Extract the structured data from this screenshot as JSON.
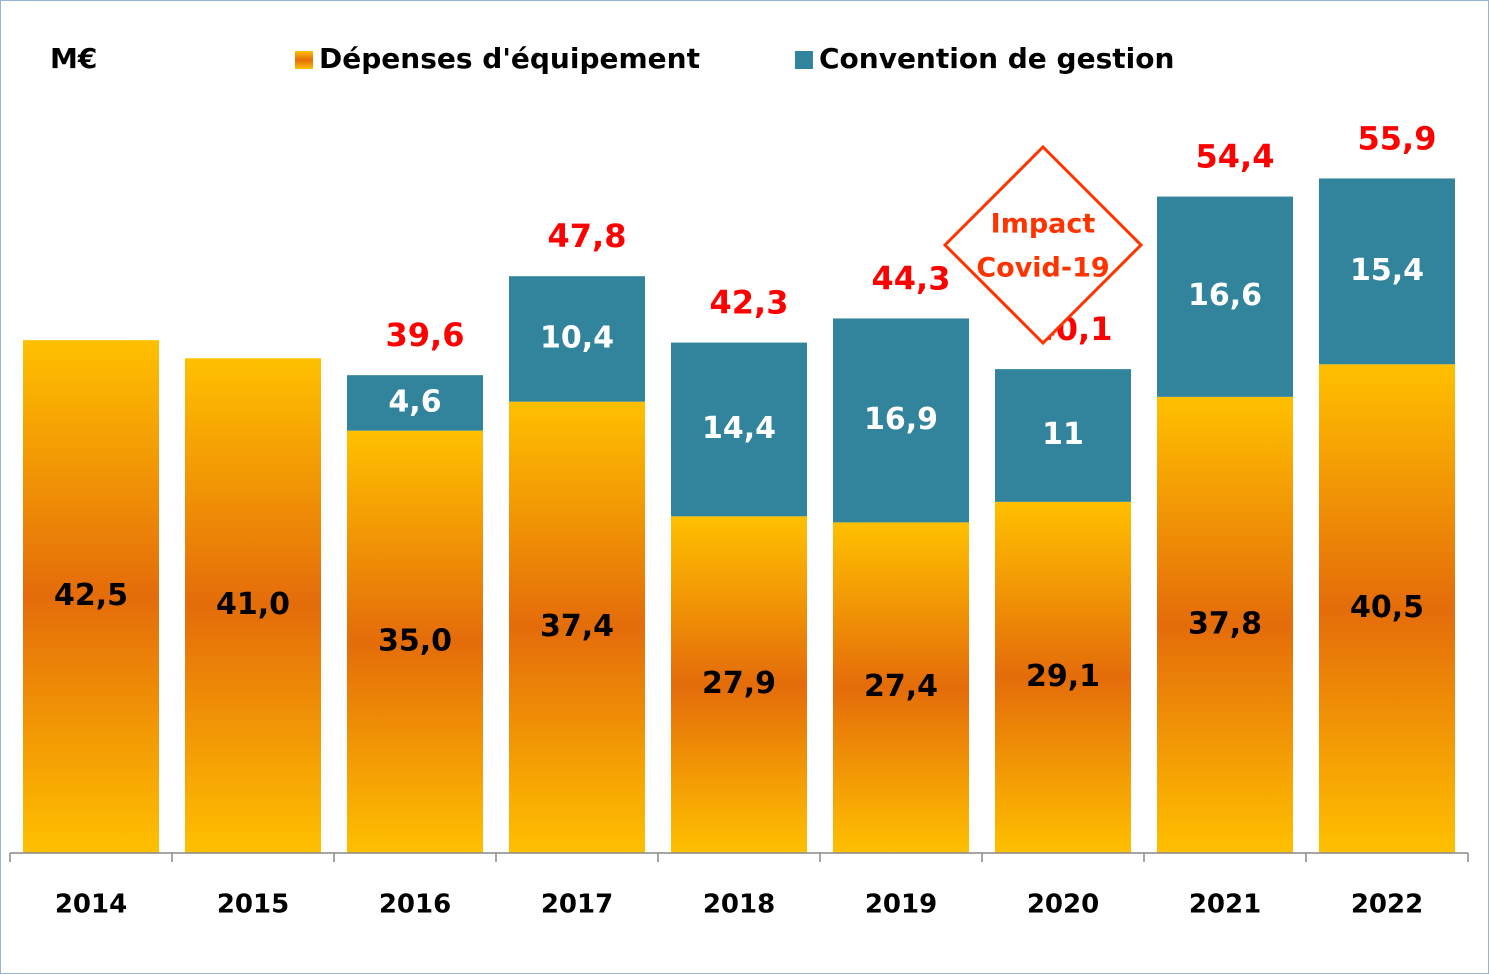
{
  "chart_data": {
    "type": "stacked_bar",
    "unit_label": "M€",
    "categories": [
      "2014",
      "2015",
      "2016",
      "2017",
      "2018",
      "2019",
      "2020",
      "2021",
      "2022"
    ],
    "series": [
      {
        "name": "Dépenses d'équipement",
        "color": "#E46C0A",
        "values": [
          42.5,
          41.0,
          35.0,
          37.4,
          27.9,
          27.4,
          29.1,
          37.8,
          40.5
        ],
        "value_labels": [
          "42,5",
          "41,0",
          "35,0",
          "37,4",
          "27,9",
          "27,4",
          "29,1",
          "37,8",
          "40,5"
        ]
      },
      {
        "name": "Convention de gestion",
        "color": "#31849B",
        "values": [
          null,
          null,
          4.6,
          10.4,
          14.4,
          16.9,
          11,
          16.6,
          15.4
        ],
        "value_labels": [
          null,
          null,
          "4,6",
          "10,4",
          "14,4",
          "16,9",
          "11",
          "16,6",
          "15,4"
        ]
      }
    ],
    "totals": [
      null,
      null,
      39.6,
      47.8,
      42.3,
      44.3,
      40.1,
      54.4,
      55.9
    ],
    "total_labels": [
      null,
      null,
      "39,6",
      "47,8",
      "42,3",
      "44,3",
      "40,1",
      "54,4",
      "55,9"
    ],
    "total_color": "#FF0000",
    "annotation": {
      "lines": [
        "Impact",
        "Covid-19"
      ],
      "category": 6,
      "color": "#FF3300"
    },
    "ylim": [
      0,
      60
    ],
    "legend": "top"
  }
}
